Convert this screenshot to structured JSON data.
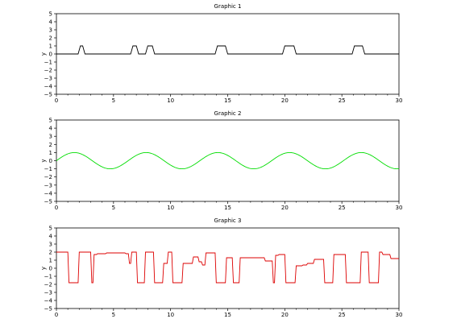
{
  "chart_data": [
    {
      "type": "line",
      "title": "Graphic 1",
      "xlabel": "",
      "ylabel": "y",
      "xlim": [
        0,
        30
      ],
      "ylim": [
        -5,
        5
      ],
      "x_ticks": [
        0,
        5,
        10,
        15,
        20,
        25,
        30
      ],
      "y_ticks": [
        -5,
        -4,
        -3,
        -2,
        -1,
        0,
        1,
        2,
        3,
        4,
        5
      ],
      "x_tick_labels": [
        "0",
        "5",
        "10",
        "15",
        "20",
        "25",
        "30"
      ],
      "y_tick_labels": [
        "−5",
        "−4",
        "−3",
        "−2",
        "−1",
        "0",
        "1",
        "2",
        "3",
        "4",
        "5"
      ],
      "grid": false,
      "series": [
        {
          "color": "#000000",
          "x": [
            0,
            1.9,
            2.1,
            2.3,
            2.5,
            6.5,
            6.7,
            7.0,
            7.2,
            7.8,
            8.0,
            8.4,
            8.6,
            13.9,
            14.1,
            14.8,
            15.0,
            19.8,
            20.0,
            20.8,
            21.0,
            25.9,
            26.1,
            26.8,
            27.0,
            30
          ],
          "y": [
            0,
            0,
            1,
            1,
            0,
            0,
            1,
            1,
            0,
            0,
            1,
            1,
            0,
            0,
            1,
            1,
            0,
            0,
            1,
            1,
            0,
            0,
            1,
            1,
            0,
            0
          ]
        }
      ]
    },
    {
      "type": "line",
      "title": "Graphic 2",
      "xlabel": "",
      "ylabel": "y",
      "xlim": [
        0,
        30
      ],
      "ylim": [
        -5,
        5
      ],
      "x_ticks": [
        0,
        5,
        10,
        15,
        20,
        25,
        30
      ],
      "y_ticks": [
        -5,
        -4,
        -3,
        -2,
        -1,
        0,
        1,
        2,
        3,
        4,
        5
      ],
      "x_tick_labels": [
        "0",
        "5",
        "10",
        "15",
        "20",
        "25",
        "30"
      ],
      "y_tick_labels": [
        "−5",
        "−4",
        "−3",
        "−2",
        "−1",
        "0",
        "1",
        "2",
        "3",
        "4",
        "5"
      ],
      "grid": false,
      "series": [
        {
          "color": "#00dd00",
          "function": "sin",
          "amplitude": 1,
          "period": 6.283,
          "x_range": [
            0,
            30
          ]
        }
      ]
    },
    {
      "type": "line",
      "title": "Graphic 3",
      "xlabel": "",
      "ylabel": "y",
      "xlim": [
        0,
        30
      ],
      "ylim": [
        -5,
        5
      ],
      "x_ticks": [
        0,
        5,
        10,
        15,
        20,
        25,
        30
      ],
      "y_ticks": [
        -5,
        -4,
        -3,
        -2,
        -1,
        0,
        1,
        2,
        3,
        4,
        5
      ],
      "x_tick_labels": [
        "0",
        "5",
        "10",
        "15",
        "20",
        "25",
        "30"
      ],
      "y_tick_labels": [
        "−5",
        "−4",
        "−3",
        "−2",
        "−1",
        "0",
        "1",
        "2",
        "3",
        "4",
        "5"
      ],
      "grid": false,
      "series": [
        {
          "color": "#dd0000",
          "x": [
            0,
            1.0,
            1.1,
            1.9,
            2.0,
            3.0,
            3.1,
            3.2,
            3.3,
            3.5,
            3.6,
            4.3,
            4.4,
            6.0,
            6.1,
            6.3,
            6.4,
            6.5,
            6.6,
            7.0,
            7.1,
            7.7,
            7.8,
            8.5,
            8.6,
            9.3,
            9.4,
            9.7,
            9.8,
            10.1,
            10.2,
            11.0,
            11.1,
            11.9,
            12.0,
            12.4,
            12.5,
            12.7,
            12.8,
            13.0,
            13.1,
            13.9,
            14.0,
            14.8,
            14.9,
            15.4,
            15.5,
            16.0,
            16.1,
            16.2,
            16.3,
            18.2,
            18.3,
            18.9,
            19.0,
            19.1,
            19.2,
            19.4,
            19.5,
            20.0,
            20.1,
            20.9,
            21.0,
            21.5,
            21.6,
            21.9,
            22.0,
            22.5,
            22.6,
            23.4,
            23.5,
            24.2,
            24.3,
            25.3,
            25.4,
            25.9,
            26.0,
            26.6,
            26.7,
            27.3,
            27.4,
            28.2,
            28.3,
            28.5,
            28.6,
            29.2,
            29.3,
            30
          ],
          "y": [
            2,
            2,
            -1.8,
            -1.8,
            2,
            2,
            -1.8,
            -1.8,
            1.7,
            1.7,
            1.8,
            1.8,
            1.9,
            1.9,
            1.8,
            1.8,
            0.6,
            0.6,
            2,
            2,
            -1.8,
            -1.8,
            2,
            2,
            -1.8,
            -1.8,
            0.6,
            0.6,
            2,
            2,
            -1.8,
            -1.8,
            0.6,
            0.6,
            1.4,
            1.4,
            0.8,
            0.8,
            0.4,
            0.4,
            1.9,
            1.9,
            -1.8,
            -1.8,
            1.3,
            1.3,
            -1.8,
            -1.8,
            1.3,
            1.3,
            1.3,
            1.3,
            0.9,
            0.9,
            -1.8,
            -1.8,
            1.6,
            1.6,
            1.7,
            1.7,
            -1.8,
            -1.8,
            0.3,
            0.3,
            0.4,
            0.4,
            0.6,
            0.6,
            1.1,
            1.1,
            -1.8,
            -1.8,
            1.7,
            1.7,
            -1.8,
            -1.8,
            -1.8,
            -1.8,
            2,
            2,
            -1.8,
            -1.8,
            2,
            2,
            1.7,
            1.7,
            1.2,
            1.2
          ]
        }
      ]
    }
  ]
}
